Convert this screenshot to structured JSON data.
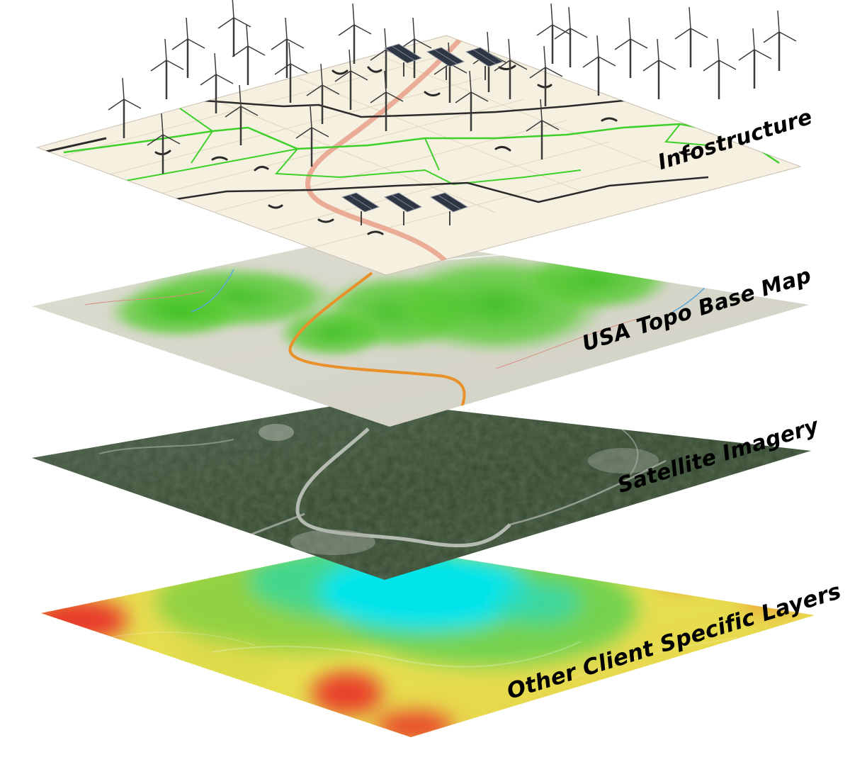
{
  "layers": [
    {
      "label": "Infostructure"
    },
    {
      "label": "USA Topo Base Map"
    },
    {
      "label": "Satellite Imagery"
    },
    {
      "label": "Other Client Specific Layers"
    }
  ],
  "colors": {
    "topo_green": "#4fc42a",
    "satellite_green": "#3e5a3a",
    "heat_low": "#00e0e6",
    "heat_mid": "#e8e040",
    "heat_high": "#e83a2a",
    "road_orange": "#e8902a",
    "power_line": "#2a2a2a",
    "pipeline_green": "#3ed02a"
  },
  "icons": [
    "wind-turbine-icon",
    "solar-panel-icon"
  ]
}
